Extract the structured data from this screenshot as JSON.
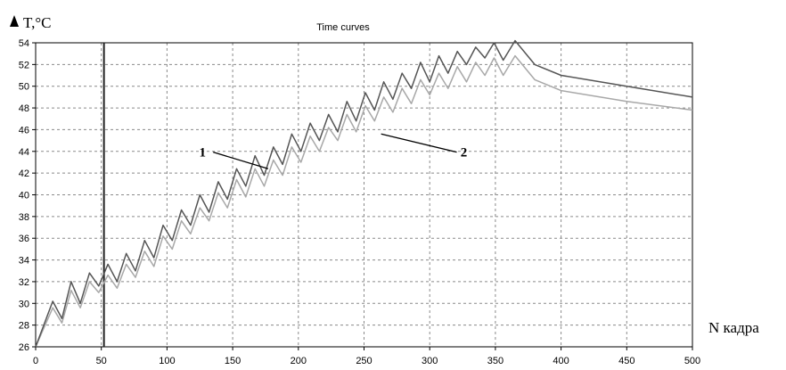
{
  "chart_data": {
    "type": "line",
    "title": "Time curves",
    "ylabel": "T,°C",
    "xlabel": "N кадра",
    "xlim": [
      0,
      500
    ],
    "ylim": [
      26,
      54
    ],
    "x_ticks": [
      0,
      50,
      100,
      150,
      200,
      250,
      300,
      350,
      400,
      450,
      500
    ],
    "y_ticks": [
      26,
      28,
      30,
      32,
      34,
      36,
      38,
      40,
      42,
      44,
      46,
      48,
      50,
      52,
      54
    ],
    "grid": true,
    "marker_line_x": 52,
    "series": [
      {
        "name": "1",
        "color": "#555555",
        "x": [
          0,
          13,
          20,
          27,
          34,
          41,
          48,
          55,
          62,
          69,
          76,
          83,
          90,
          97,
          104,
          111,
          118,
          125,
          132,
          139,
          146,
          153,
          160,
          167,
          174,
          181,
          188,
          195,
          202,
          209,
          216,
          223,
          230,
          237,
          244,
          251,
          258,
          265,
          272,
          279,
          286,
          293,
          300,
          307,
          314,
          321,
          328,
          335,
          342,
          349,
          356,
          365,
          380,
          400,
          450,
          500
        ],
        "y": [
          26.0,
          30.2,
          28.6,
          32.0,
          30.0,
          32.8,
          31.6,
          33.6,
          32.0,
          34.6,
          33.0,
          35.8,
          34.2,
          37.2,
          35.8,
          38.6,
          37.2,
          40.0,
          38.4,
          41.2,
          39.6,
          42.4,
          40.8,
          43.6,
          41.8,
          44.4,
          42.8,
          45.6,
          44.0,
          46.6,
          45.0,
          47.4,
          45.8,
          48.6,
          46.8,
          49.4,
          47.8,
          50.4,
          48.8,
          51.2,
          49.8,
          52.2,
          50.4,
          52.8,
          51.2,
          53.2,
          52.0,
          53.6,
          52.6,
          54.0,
          52.4,
          54.2,
          52.0,
          51.0,
          50.0,
          49.0
        ]
      },
      {
        "name": "2",
        "color": "#a8a8a8",
        "x": [
          0,
          13,
          20,
          27,
          34,
          41,
          48,
          55,
          62,
          69,
          76,
          83,
          90,
          97,
          104,
          111,
          118,
          125,
          132,
          139,
          146,
          153,
          160,
          167,
          174,
          181,
          188,
          195,
          202,
          209,
          216,
          223,
          230,
          237,
          244,
          251,
          258,
          265,
          272,
          279,
          286,
          293,
          300,
          307,
          314,
          321,
          328,
          335,
          342,
          349,
          356,
          365,
          380,
          400,
          450,
          500
        ],
        "y": [
          26.0,
          29.6,
          28.2,
          31.2,
          29.6,
          32.0,
          31.0,
          32.6,
          31.4,
          33.6,
          32.4,
          34.8,
          33.4,
          36.2,
          35.0,
          37.6,
          36.4,
          38.8,
          37.6,
          40.2,
          38.8,
          41.4,
          39.8,
          42.4,
          40.8,
          43.2,
          41.8,
          44.4,
          43.0,
          45.4,
          44.0,
          46.2,
          45.0,
          47.4,
          45.8,
          48.2,
          46.8,
          49.0,
          47.6,
          49.8,
          48.4,
          50.6,
          49.2,
          51.2,
          49.8,
          51.8,
          50.4,
          52.2,
          51.0,
          52.6,
          51.0,
          52.8,
          50.6,
          49.6,
          48.6,
          47.8
        ]
      }
    ],
    "callouts": [
      {
        "label": "1",
        "text_x": 127,
        "text_y": 43.6,
        "to_x": 177,
        "to_y": 42.4
      },
      {
        "label": "2",
        "text_x": 326,
        "text_y": 43.6,
        "to_x": 263,
        "to_y": 45.6
      }
    ]
  }
}
